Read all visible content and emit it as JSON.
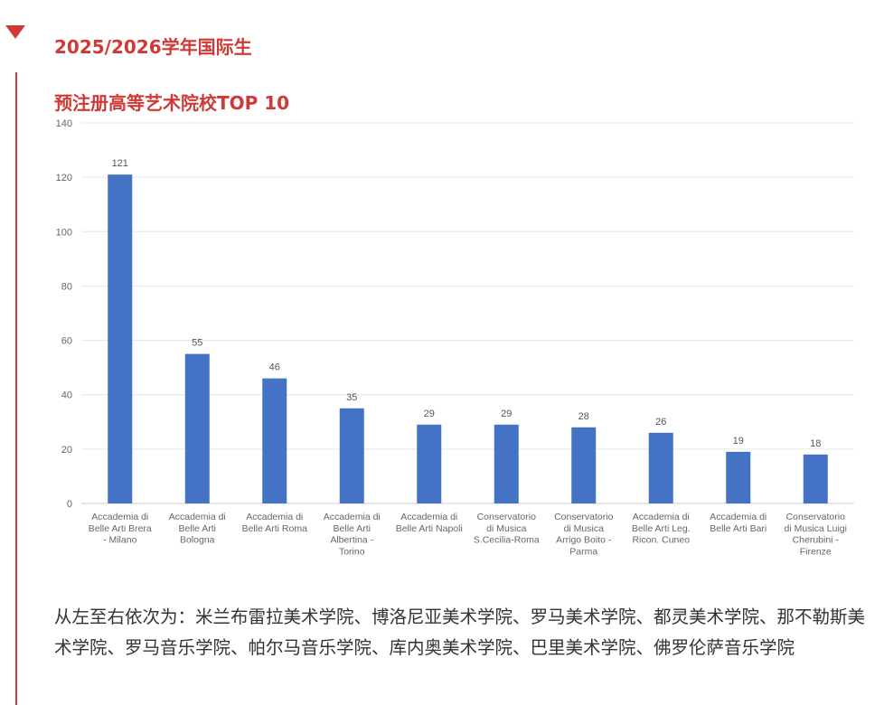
{
  "header": {
    "title_line1": "2025/2026学年国际生",
    "title_line2": "预注册高等艺术院校TOP 10",
    "accent_color": "#d03a36",
    "marker_icon": "triangle-down-icon"
  },
  "chart_data": {
    "type": "bar",
    "categories": [
      "Accademia di Belle Arti Brera - Milano",
      "Accademia di Belle Arti Bologna",
      "Accademia di Belle Arti Roma",
      "Accademia di Belle Arti Albertina - Torino",
      "Accademia di Belle Arti Napoli",
      "Conservatorio di Musica S.Cecilia-Roma",
      "Conservatorio di Musica Arrigo Boito - Parma",
      "Accademia di Belle Arti Leg. Ricon. Cuneo",
      "Accademia di Belle Arti Bari",
      "Conservatorio di Musica Luigi Cherubini - Firenze"
    ],
    "category_lines": [
      [
        "Accademia di",
        "Belle Arti Brera",
        "- Milano"
      ],
      [
        "Accademia di",
        "Belle Arti",
        "Bologna"
      ],
      [
        "Accademia di",
        "Belle Arti Roma"
      ],
      [
        "Accademia di",
        "Belle Arti",
        "Albertina -",
        "Torino"
      ],
      [
        "Accademia di",
        "Belle Arti Napoli"
      ],
      [
        "Conservatorio",
        "di Musica",
        "S.Cecilia-Roma"
      ],
      [
        "Conservatorio",
        "di Musica",
        "Arrigo Boito -",
        "Parma"
      ],
      [
        "Accademia di",
        "Belle Arti Leg.",
        "Ricon. Cuneo"
      ],
      [
        "Accademia di",
        "Belle Arti Bari"
      ],
      [
        "Conservatorio",
        "di Musica Luigi",
        "Cherubini -",
        "Firenze"
      ]
    ],
    "values": [
      121,
      55,
      46,
      35,
      29,
      29,
      28,
      26,
      19,
      18
    ],
    "ylim": [
      0,
      140
    ],
    "yticks": [
      0,
      20,
      40,
      60,
      80,
      100,
      120,
      140
    ],
    "grid": true,
    "bar_color": "#4472c4",
    "xlabel": "",
    "ylabel": ""
  },
  "caption": {
    "text": "从左至右依次为：米兰布雷拉美术学院、博洛尼亚美术学院、罗马美术学院、都灵美术学院、那不勒斯美术学院、罗马音乐学院、帕尔马音乐学院、库内奥美术学院、巴里美术学院、佛罗伦萨音乐学院"
  }
}
